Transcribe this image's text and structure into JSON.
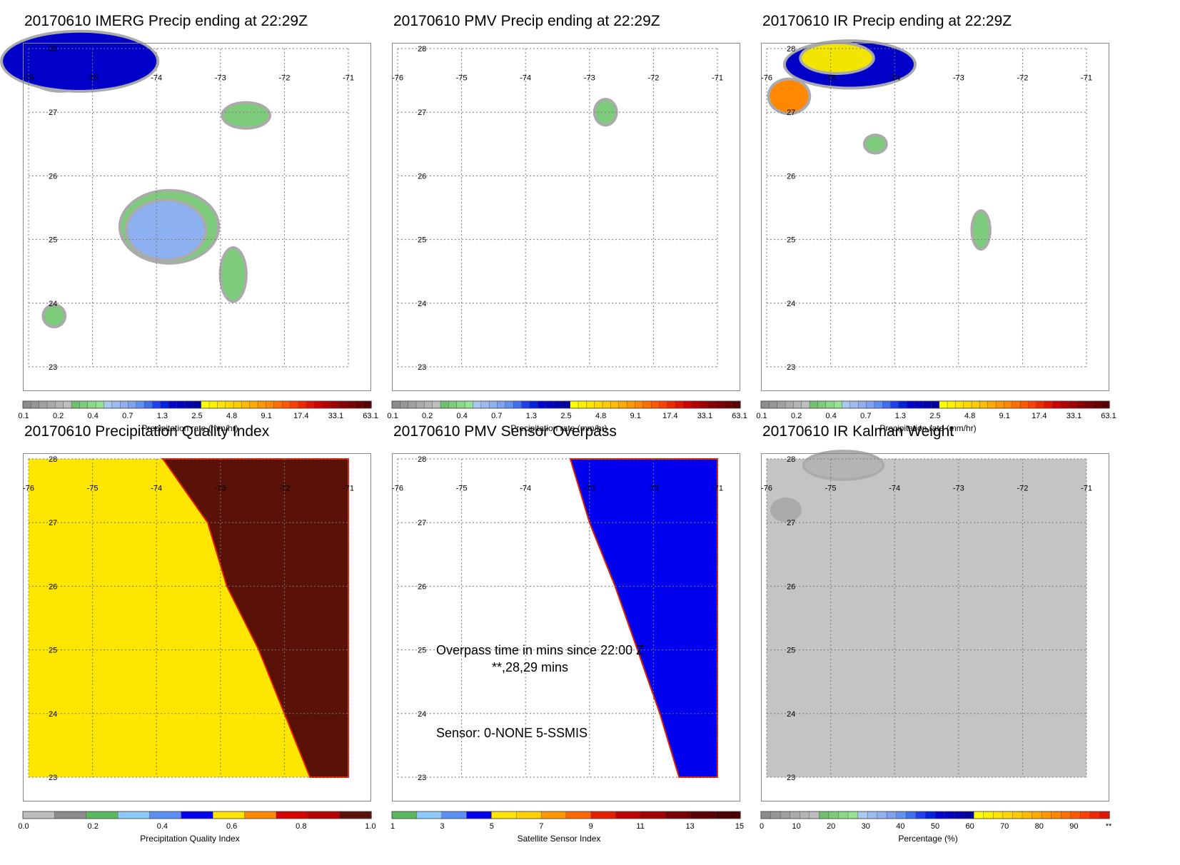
{
  "palettes": {
    "precip": [
      "#8c8c8c",
      "#969696",
      "#a0a0a0",
      "#aaaaaa",
      "#b4b4b4",
      "#bebebe",
      "#70c070",
      "#7ccc7c",
      "#88d888",
      "#94e494",
      "#a8c8f0",
      "#9cbcf0",
      "#90b0f0",
      "#80a0f0",
      "#6090f0",
      "#4070f0",
      "#2040f0",
      "#0020e0",
      "#0000d0",
      "#0000c0",
      "#0000b0",
      "#0000a0",
      "#ffff00",
      "#fff000",
      "#ffe400",
      "#ffd800",
      "#ffcc00",
      "#ffbc00",
      "#ffaa00",
      "#ff9800",
      "#ff8800",
      "#ff7000",
      "#ff5800",
      "#ff4000",
      "#f02800",
      "#e01400",
      "#d00000",
      "#b80000",
      "#a00000",
      "#880000",
      "#780000",
      "#680000",
      "#580000"
    ],
    "quality": [
      "#bdbdbd",
      "#8c8c8c",
      "#5cb85c",
      "#8ec8f8",
      "#5d8ef5",
      "#0000ee",
      "#ffe600",
      "#ff8a00",
      "#d80000",
      "#b80000",
      "#5a1208"
    ],
    "sensor": [
      "#5cb85c",
      "#8ec8f8",
      "#5d8ef5",
      "#0000ee",
      "#ffe600",
      "#ffd200",
      "#ff9800",
      "#ff6a00",
      "#e61e00",
      "#c00000",
      "#a00000",
      "#7a0000",
      "#5a0000",
      "#4a0000"
    ],
    "percent": [
      "#8c8c8c",
      "#969696",
      "#a0a0a0",
      "#aaaaaa",
      "#b4b4b4",
      "#bebebe",
      "#70c070",
      "#7ccc7c",
      "#88d888",
      "#94e494",
      "#a8c8f0",
      "#9cbcf0",
      "#90b0f0",
      "#80a0f0",
      "#6090f0",
      "#4070f0",
      "#2040f0",
      "#0020e0",
      "#0000d0",
      "#0000c0",
      "#0000b0",
      "#0000a0",
      "#ffff00",
      "#fff000",
      "#ffe400",
      "#ffd800",
      "#ffcc00",
      "#ffbc00",
      "#ffaa00",
      "#ff9800",
      "#ff8800",
      "#ff7000",
      "#ff5800",
      "#ff4000",
      "#f02800",
      "#e01400"
    ]
  },
  "axes": {
    "lon_labels": [
      "-76",
      "-75",
      "-74",
      "-73",
      "-72",
      "-71"
    ],
    "lat_labels": [
      "28",
      "27",
      "26",
      "25",
      "24",
      "23"
    ],
    "lon_range": [
      -76,
      -71
    ],
    "lat_range": [
      23,
      28
    ],
    "grid": "dotted"
  },
  "chart_data": [
    {
      "type": "heatmap",
      "title": "20170610 IMERG Precip ending at 22:29Z",
      "colorbar_ticks": [
        "0.1",
        "0.2",
        "0.4",
        "0.7",
        "1.3",
        "2.5",
        "4.8",
        "9.1",
        "17.4",
        "33.1",
        "63.1"
      ],
      "colorbar_label": "Precipitation rate (mm/hr)",
      "palette": "precip",
      "features": [
        {
          "kind": "blob",
          "lon": -75.5,
          "lat": 27.7,
          "rx": 0.55,
          "ry": 0.35,
          "color": "#f2e600"
        },
        {
          "kind": "blob",
          "lon": -75.2,
          "lat": 27.8,
          "rx": 1.2,
          "ry": 0.45,
          "color": "#0000c8"
        },
        {
          "kind": "blob",
          "lon": -72.6,
          "lat": 26.95,
          "rx": 0.35,
          "ry": 0.18,
          "color": "#7ccc7c"
        },
        {
          "kind": "blob",
          "lon": -73.8,
          "lat": 25.2,
          "rx": 0.75,
          "ry": 0.55,
          "color": "#7ccc7c"
        },
        {
          "kind": "blob",
          "lon": -73.85,
          "lat": 25.15,
          "rx": 0.6,
          "ry": 0.45,
          "color": "#8cb0f0"
        },
        {
          "kind": "blob",
          "lon": -72.8,
          "lat": 24.45,
          "rx": 0.18,
          "ry": 0.4,
          "color": "#7ccc7c"
        },
        {
          "kind": "blob",
          "lon": -75.6,
          "lat": 23.8,
          "rx": 0.15,
          "ry": 0.15,
          "color": "#7ccc7c"
        }
      ]
    },
    {
      "type": "heatmap",
      "title": "20170610 PMV Precip ending at 22:29Z",
      "colorbar_ticks": [
        "0.1",
        "0.2",
        "0.4",
        "0.7",
        "1.3",
        "2.5",
        "4.8",
        "9.1",
        "17.4",
        "33.1",
        "63.1"
      ],
      "colorbar_label": "Precipitation rate (mm/hr)",
      "palette": "precip",
      "features": [
        {
          "kind": "blob",
          "lon": -72.75,
          "lat": 27.0,
          "rx": 0.15,
          "ry": 0.18,
          "color": "#7ccc7c"
        }
      ]
    },
    {
      "type": "heatmap",
      "title": "20170610 IR Precip ending at 22:29Z",
      "colorbar_ticks": [
        "0.1",
        "0.2",
        "0.4",
        "0.7",
        "1.3",
        "2.5",
        "4.8",
        "9.1",
        "17.4",
        "33.1",
        "63.1"
      ],
      "colorbar_label": "Precipitation rate (mm/hr)",
      "palette": "precip",
      "features": [
        {
          "kind": "blob",
          "lon": -74.7,
          "lat": 27.75,
          "rx": 1.0,
          "ry": 0.35,
          "color": "#0000c8"
        },
        {
          "kind": "blob",
          "lon": -74.9,
          "lat": 27.85,
          "rx": 0.55,
          "ry": 0.22,
          "color": "#f2e600"
        },
        {
          "kind": "blob",
          "lon": -75.65,
          "lat": 27.25,
          "rx": 0.3,
          "ry": 0.25,
          "color": "#ff8800"
        },
        {
          "kind": "blob",
          "lon": -74.3,
          "lat": 26.5,
          "rx": 0.15,
          "ry": 0.12,
          "color": "#7ccc7c"
        },
        {
          "kind": "blob",
          "lon": -72.65,
          "lat": 25.15,
          "rx": 0.12,
          "ry": 0.28,
          "color": "#7ccc7c"
        }
      ]
    },
    {
      "type": "heatmap",
      "title": "20170610 Precipitation Quality Index",
      "colorbar_ticks": [
        "0.0",
        "0.2",
        "0.4",
        "0.6",
        "0.8",
        "1.0"
      ],
      "colorbar_label": "Precipitation Quality Index",
      "palette": "quality",
      "fill_left": "#ffe600",
      "fill_right": "#5a1208",
      "boundary": [
        [
          -73.9,
          28
        ],
        [
          -73.2,
          27
        ],
        [
          -72.9,
          26
        ],
        [
          -72.4,
          25
        ],
        [
          -72.0,
          24
        ],
        [
          -71.6,
          23
        ]
      ]
    },
    {
      "type": "heatmap",
      "title": "20170610 PMV Sensor Overpass",
      "colorbar_ticks": [
        "1",
        "3",
        "5",
        "7",
        "9",
        "11",
        "13",
        "15"
      ],
      "colorbar_label": "Satellite Sensor Index",
      "palette": "sensor",
      "fill_left": "#ffffff",
      "fill_right": "#0000ee",
      "boundary": [
        [
          -73.3,
          28
        ],
        [
          -73.0,
          27
        ],
        [
          -72.6,
          26
        ],
        [
          -72.25,
          25
        ],
        [
          -71.9,
          24
        ],
        [
          -71.6,
          23
        ]
      ],
      "annotations": [
        "Overpass time in mins since 22:00 Z",
        "**,28,29 mins",
        "Sensor:   0-NONE  5-SSMIS"
      ]
    },
    {
      "type": "heatmap",
      "title": "20170610 IR Kalman Weight",
      "colorbar_ticks": [
        "0",
        "10",
        "20",
        "30",
        "40",
        "50",
        "60",
        "70",
        "80",
        "90",
        "**"
      ],
      "colorbar_label": "Percentage (%)",
      "palette": "percent",
      "fill": "#c4c4c4",
      "features": [
        {
          "kind": "blob",
          "lon": -74.8,
          "lat": 27.9,
          "rx": 0.6,
          "ry": 0.2,
          "color": "#b4b4b4"
        },
        {
          "kind": "blob",
          "lon": -75.7,
          "lat": 27.2,
          "rx": 0.2,
          "ry": 0.15,
          "color": "#aaaaaa"
        }
      ]
    }
  ]
}
